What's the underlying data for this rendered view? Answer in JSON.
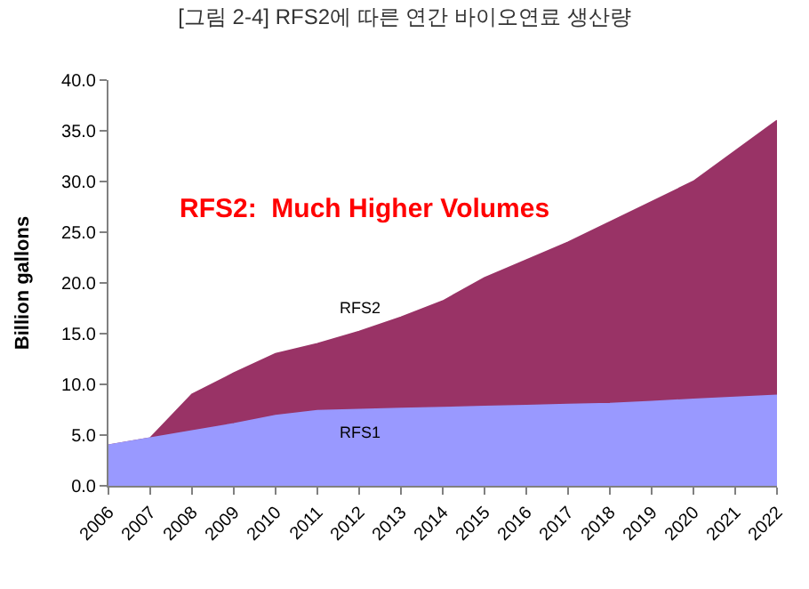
{
  "chart_data": {
    "type": "area",
    "title": "[그림 2-4] RFS2에 따른 연간 바이오연료 생산량",
    "ylabel": "Billion gallons",
    "x": [
      2006,
      2007,
      2008,
      2009,
      2010,
      2011,
      2012,
      2013,
      2014,
      2015,
      2016,
      2017,
      2018,
      2019,
      2020,
      2021,
      2022
    ],
    "xlim": [
      2006,
      2022
    ],
    "xticks": [
      2006,
      2007,
      2008,
      2009,
      2010,
      2011,
      2012,
      2013,
      2014,
      2015,
      2016,
      2017,
      2018,
      2019,
      2020,
      2021,
      2022
    ],
    "ylim": [
      0,
      40
    ],
    "yticks": [
      {
        "value": 0,
        "label": "0.0"
      },
      {
        "value": 5,
        "label": "5.0"
      },
      {
        "value": 10,
        "label": "10.0"
      },
      {
        "value": 15,
        "label": "15.0"
      },
      {
        "value": 20,
        "label": "20.0"
      },
      {
        "value": 25,
        "label": "25.0"
      },
      {
        "value": 30,
        "label": "30.0"
      },
      {
        "value": 35,
        "label": "35.0"
      },
      {
        "value": 40,
        "label": "40.0"
      }
    ],
    "legend": false,
    "annotations": [
      "RFS2:  Much Higher Volumes"
    ],
    "series": [
      {
        "name": "RFS2",
        "color": "#993366",
        "values": [
          4.0,
          4.7,
          9.0,
          11.1,
          13.0,
          14.0,
          15.2,
          16.6,
          18.2,
          20.5,
          22.25,
          24.0,
          26.0,
          28.0,
          30.0,
          33.0,
          36.0
        ]
      },
      {
        "name": "RFS1",
        "color": "#9999ff",
        "values": [
          4.0,
          4.7,
          5.4,
          6.1,
          6.9,
          7.4,
          7.5,
          7.6,
          7.7,
          7.8,
          7.9,
          8.0,
          8.1,
          8.3,
          8.5,
          8.7,
          8.9
        ]
      }
    ]
  }
}
